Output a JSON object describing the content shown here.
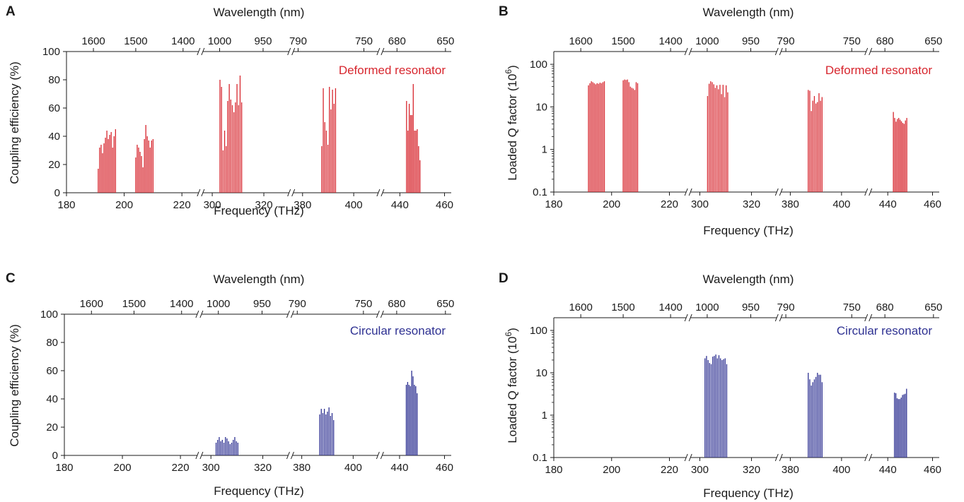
{
  "chart_data": [
    {
      "panel": "A",
      "type": "bar",
      "xlabel": "Frequency (THz)",
      "x2label": "Wavelength (nm)",
      "ylabel": "Coupling efficiency (%)",
      "yscale": "linear",
      "ylim": [
        0,
        100
      ],
      "yticks": [
        "0",
        "20",
        "40",
        "60",
        "80",
        "100"
      ],
      "xticks": [
        "180",
        "200",
        "220",
        "300",
        "320",
        "380",
        "400",
        "440",
        "460"
      ],
      "x2ticks": [
        "1600",
        "1500",
        "1400",
        "1000",
        "950",
        "790",
        "750",
        "680",
        "650"
      ],
      "annotation": "Deformed resonator",
      "color": "#d7262e",
      "series": [
        {
          "x": [
            191.0,
            191.5,
            192.0,
            192.5,
            193.0,
            193.5,
            194.0,
            194.5,
            195.0,
            195.5,
            196.0,
            196.5,
            197.0
          ],
          "values": [
            17,
            32,
            34,
            28,
            35,
            39,
            44,
            38,
            41,
            43,
            32,
            40,
            45
          ]
        },
        {
          "x": [
            204.0,
            204.5,
            205.0,
            205.5,
            206.0,
            206.5,
            207.0,
            207.5,
            208.0,
            208.5,
            209.0,
            209.5,
            210.0
          ],
          "values": [
            25,
            34,
            32,
            29,
            26,
            18,
            38,
            48,
            40,
            37,
            32,
            37,
            38
          ]
        },
        {
          "x": [
            303.0,
            303.6,
            304.2,
            304.8,
            305.4,
            306.0,
            306.6,
            307.2,
            307.8,
            308.4,
            309.0,
            309.6,
            310.2,
            310.8,
            311.4
          ],
          "values": [
            80,
            75,
            30,
            44,
            33,
            65,
            77,
            66,
            62,
            57,
            64,
            77,
            62,
            83,
            64
          ]
        },
        {
          "x": [
            387.5,
            388.1,
            388.7,
            389.3,
            389.9,
            390.5,
            391.1,
            391.7,
            392.3,
            392.9
          ],
          "values": [
            33,
            74,
            50,
            44,
            34,
            75,
            59,
            73,
            63,
            74
          ]
        },
        {
          "x": [
            443.0,
            443.6,
            444.2,
            444.8,
            445.4,
            446.0,
            446.6,
            447.2,
            447.8,
            448.4,
            449.0
          ],
          "values": [
            65,
            44,
            63,
            55,
            55,
            77,
            44,
            44,
            45,
            33,
            23
          ]
        }
      ]
    },
    {
      "panel": "B",
      "type": "bar",
      "xlabel": "Frequency (THz)",
      "x2label": "Wavelength (nm)",
      "ylabel": "Loaded Q factor (10",
      "ylabel_sup": "6",
      "ylabel_end": ")",
      "yscale": "log",
      "ylim": [
        0.1,
        100
      ],
      "yticks": [
        "0.1",
        "1",
        "10",
        "100"
      ],
      "xticks": [
        "180",
        "200",
        "220",
        "300",
        "320",
        "380",
        "400",
        "440",
        "460"
      ],
      "x2ticks": [
        "1600",
        "1500",
        "1400",
        "1000",
        "950",
        "790",
        "750",
        "680",
        "650"
      ],
      "annotation": "Deformed resonator",
      "color": "#d7262e",
      "series": [
        {
          "x": [
            192.0,
            192.5,
            193.0,
            193.5,
            194.0,
            194.5,
            195.0,
            195.5,
            196.0,
            196.5,
            197.0,
            197.5
          ],
          "values": [
            32,
            36,
            40,
            38,
            36,
            34,
            36,
            35,
            37,
            36,
            38,
            40
          ]
        },
        {
          "x": [
            204.0,
            204.5,
            205.0,
            205.5,
            206.0,
            206.5,
            207.0,
            207.5,
            208.0,
            208.5,
            209.0
          ],
          "values": [
            42,
            44,
            43,
            44,
            38,
            30,
            28,
            27,
            25,
            38,
            36
          ]
        },
        {
          "x": [
            303.0,
            303.6,
            304.2,
            304.8,
            305.4,
            306.0,
            306.6,
            307.2,
            307.8,
            308.4,
            309.0,
            309.6,
            310.2,
            310.8
          ],
          "values": [
            18,
            35,
            40,
            38,
            34,
            28,
            32,
            26,
            33,
            20,
            33,
            17,
            32,
            22
          ]
        },
        {
          "x": [
            387.0,
            387.6,
            388.2,
            388.8,
            389.4,
            390.0,
            390.6,
            391.2,
            391.8,
            392.4
          ],
          "values": [
            25,
            24,
            8,
            14,
            18,
            12,
            13,
            21,
            14,
            17
          ]
        },
        {
          "x": [
            442.5,
            443.1,
            443.7,
            444.3,
            444.9,
            445.5,
            446.1,
            446.7,
            447.3,
            447.9,
            448.5
          ],
          "values": [
            7.6,
            5.5,
            4.5,
            5.2,
            5.5,
            5.0,
            4.6,
            4.2,
            4.0,
            4.8,
            5.5
          ]
        }
      ]
    },
    {
      "panel": "C",
      "type": "bar",
      "xlabel": "Frequency (THz)",
      "x2label": "Wavelength (nm)",
      "ylabel": "Coupling efficiency (%)",
      "yscale": "linear",
      "ylim": [
        0,
        100
      ],
      "yticks": [
        "0",
        "20",
        "40",
        "60",
        "80",
        "100"
      ],
      "xticks": [
        "180",
        "200",
        "220",
        "300",
        "320",
        "380",
        "400",
        "440",
        "460"
      ],
      "x2ticks": [
        "1600",
        "1500",
        "1400",
        "1000",
        "950",
        "790",
        "750",
        "680",
        "650"
      ],
      "annotation": "Circular resonator",
      "color": "#2e3192",
      "series": [
        {
          "x": [
            302.0,
            302.6,
            303.2,
            303.8,
            304.4,
            305.0,
            305.6,
            306.2,
            306.8,
            307.4,
            308.0,
            308.6,
            309.2,
            309.8,
            310.4
          ],
          "values": [
            9,
            11,
            13,
            10,
            11,
            9,
            13,
            12,
            10,
            8,
            9,
            11,
            13,
            10,
            9
          ]
        },
        {
          "x": [
            387.0,
            387.6,
            388.2,
            388.8,
            389.4,
            390.0,
            390.6,
            391.2,
            391.8,
            392.4
          ],
          "values": [
            29,
            33,
            30,
            33,
            29,
            31,
            34,
            28,
            30,
            25
          ]
        },
        {
          "x": [
            443.0,
            443.6,
            444.2,
            444.8,
            445.4,
            446.0,
            446.6,
            447.2,
            447.8
          ],
          "values": [
            50,
            52,
            50,
            49,
            60,
            56,
            50,
            49,
            44
          ]
        }
      ]
    },
    {
      "panel": "D",
      "type": "bar",
      "xlabel": "Frequency (THz)",
      "x2label": "Wavelength (nm)",
      "ylabel": "Loaded Q factor (10",
      "ylabel_sup": "6",
      "ylabel_end": ")",
      "yscale": "log",
      "ylim": [
        0.1,
        100
      ],
      "yticks": [
        "0.1",
        "1",
        "10",
        "100"
      ],
      "xticks": [
        "180",
        "200",
        "220",
        "300",
        "320",
        "380",
        "400",
        "440",
        "460"
      ],
      "x2ticks": [
        "1600",
        "1500",
        "1400",
        "1000",
        "950",
        "790",
        "750",
        "680",
        "650"
      ],
      "annotation": "Circular resonator",
      "color": "#2e3192",
      "series": [
        {
          "x": [
            302.0,
            302.6,
            303.2,
            303.8,
            304.4,
            305.0,
            305.6,
            306.2,
            306.8,
            307.4,
            308.0,
            308.6,
            309.2,
            309.8,
            310.4
          ],
          "values": [
            22,
            25,
            20,
            17,
            16,
            24,
            25,
            27,
            22,
            26,
            22,
            20,
            21,
            22,
            16
          ]
        },
        {
          "x": [
            387.0,
            387.6,
            388.2,
            388.8,
            389.4,
            390.0,
            390.6,
            391.2,
            391.8,
            392.4
          ],
          "values": [
            10,
            7,
            5,
            6,
            7,
            8,
            10,
            9,
            9,
            6
          ]
        },
        {
          "x": [
            443.0,
            443.6,
            444.2,
            444.8,
            445.4,
            446.0,
            446.6,
            447.2,
            447.8,
            448.4
          ],
          "values": [
            3.4,
            3.3,
            2.5,
            2.4,
            2.4,
            2.6,
            3.0,
            3.1,
            3.2,
            4.2
          ]
        }
      ]
    }
  ]
}
